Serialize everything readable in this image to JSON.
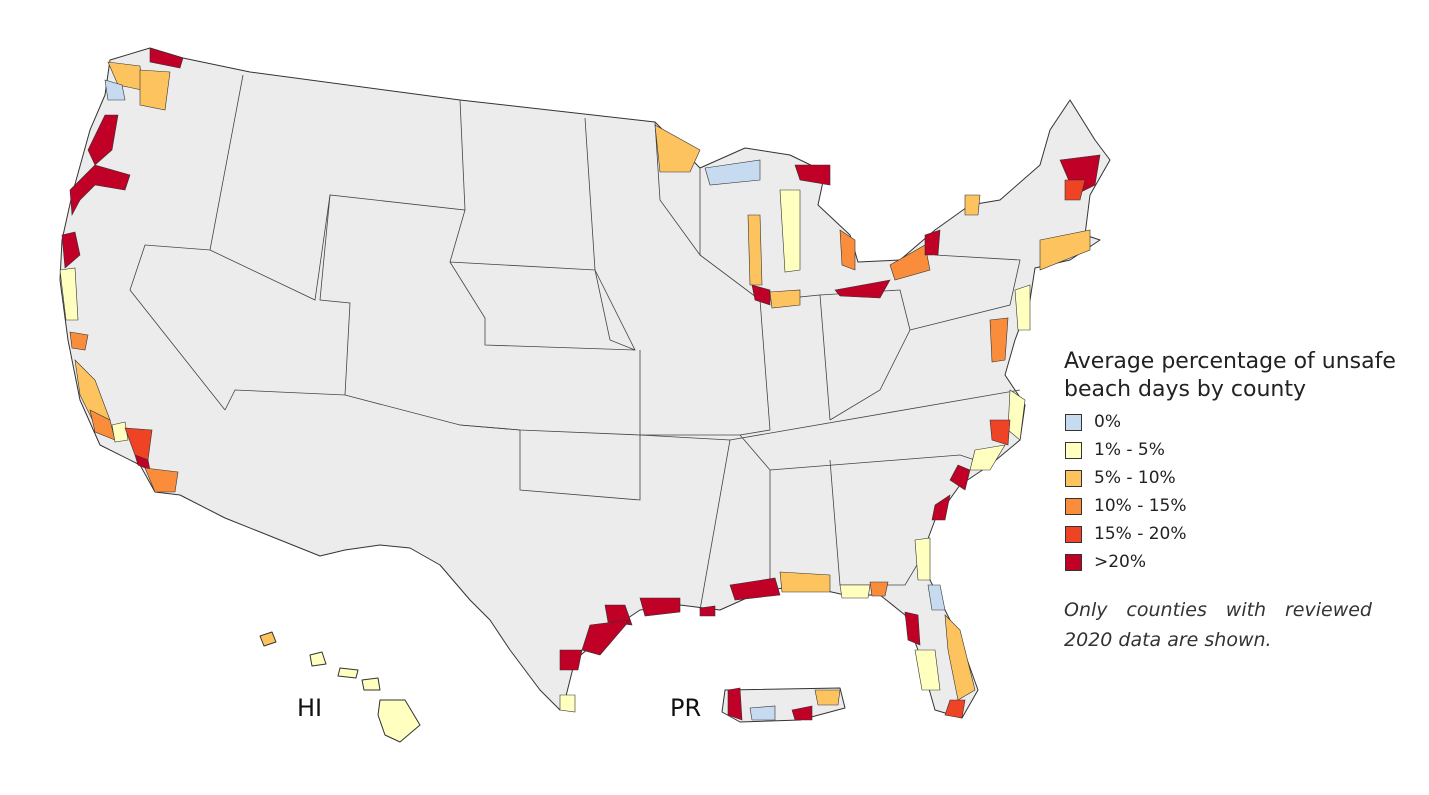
{
  "legend": {
    "title": "Average percentage of unsafe beach days by county",
    "items": [
      {
        "label": "0%",
        "color": "#c6dbef"
      },
      {
        "label": "1% - 5%",
        "color": "#ffffbf"
      },
      {
        "label": "5% - 10%",
        "color": "#fdc35f"
      },
      {
        "label": "10% - 15%",
        "color": "#f98d3c"
      },
      {
        "label": "15% - 20%",
        "color": "#ee4324"
      },
      {
        "label": ">20%",
        "color": "#c00026"
      }
    ]
  },
  "note": "Only counties with reviewed 2020 data are shown.",
  "labels": {
    "hi": "HI",
    "pr": "PR"
  }
}
